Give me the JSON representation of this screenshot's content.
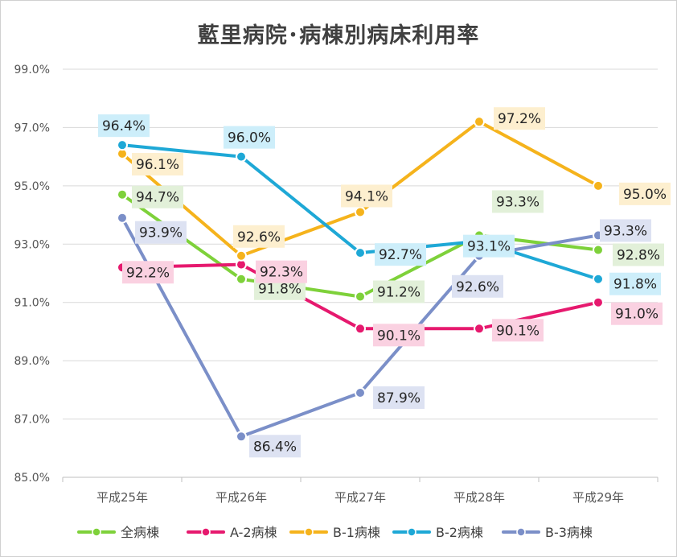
{
  "chart_data": {
    "type": "line",
    "title": "藍里病院･病棟別病床利用率",
    "xlabel": "",
    "ylabel": "",
    "categories": [
      "平成25年",
      "平成26年",
      "平成27年",
      "平成28年",
      "平成29年"
    ],
    "ylim": [
      85.0,
      99.0
    ],
    "yticks": [
      "85.0%",
      "87.0%",
      "89.0%",
      "91.0%",
      "93.0%",
      "95.0%",
      "97.0%",
      "99.0%"
    ],
    "grid": true,
    "legend_position": "bottom",
    "series": [
      {
        "name": "全病棟",
        "color": "#7ed13a",
        "label_bg": "#e2f0d9",
        "values": [
          94.7,
          91.8,
          91.2,
          93.3,
          92.8
        ],
        "labels": [
          "94.7%",
          "91.8%",
          "91.2%",
          "93.3%",
          "92.8%"
        ]
      },
      {
        "name": "A-2病棟",
        "color": "#e6196e",
        "label_bg": "#fad1e1",
        "values": [
          92.2,
          92.3,
          90.1,
          90.1,
          91.0
        ],
        "labels": [
          "92.2%",
          "92.3%",
          "90.1%",
          "90.1%",
          "91.0%"
        ]
      },
      {
        "name": "B-1病棟",
        "color": "#f5b31c",
        "label_bg": "#fdefcf",
        "values": [
          96.1,
          92.6,
          94.1,
          97.2,
          95.0
        ],
        "labels": [
          "96.1%",
          "92.6%",
          "94.1%",
          "97.2%",
          "95.0%"
        ]
      },
      {
        "name": "B-2病棟",
        "color": "#1ea8d6",
        "label_bg": "#cdeefa",
        "values": [
          96.4,
          96.0,
          92.7,
          93.1,
          91.8
        ],
        "labels": [
          "96.4%",
          "96.0%",
          "92.7%",
          "93.1%",
          "91.8%"
        ]
      },
      {
        "name": "B-3病棟",
        "color": "#7b8fc8",
        "label_bg": "#dde2f2",
        "values": [
          93.9,
          86.4,
          87.9,
          92.6,
          93.3
        ],
        "labels": [
          "93.9%",
          "86.4%",
          "87.9%",
          "92.6%",
          "93.3%"
        ]
      }
    ]
  }
}
